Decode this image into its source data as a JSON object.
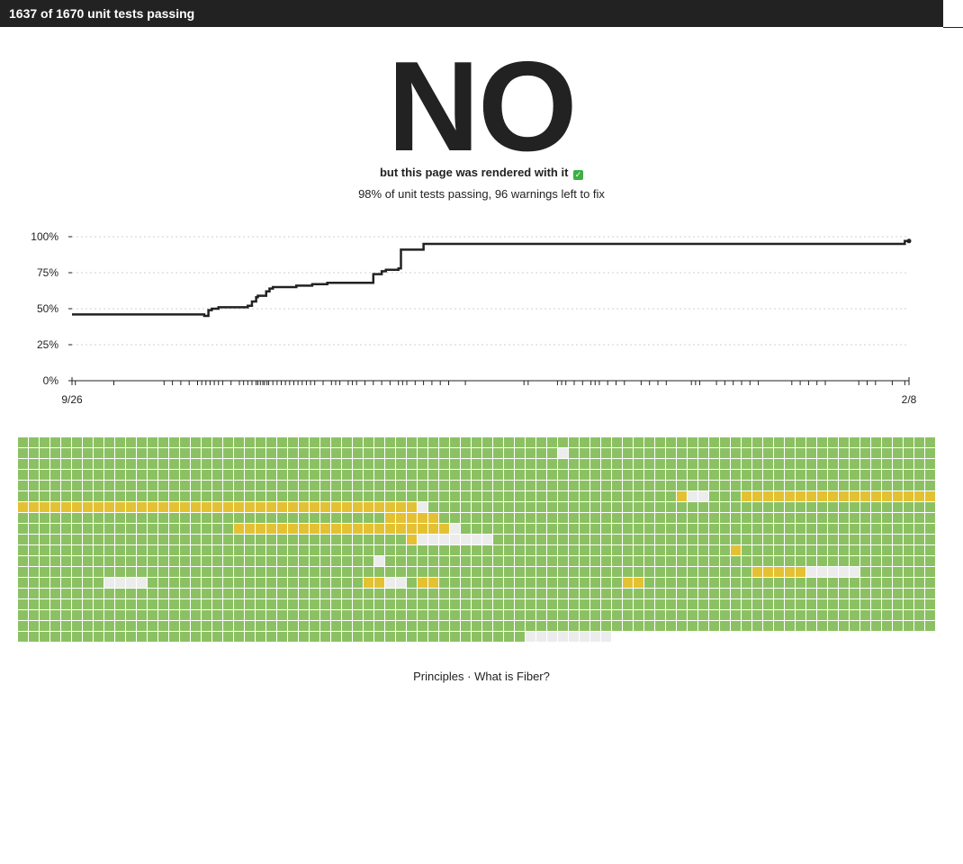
{
  "header": {
    "status_text": "1637 of 1670 unit tests passing"
  },
  "hero": {
    "answer": "NO",
    "subtitle": "but this page was rendered with it",
    "check_icon": "check-mark-icon",
    "progress_text": "98% of unit tests passing, 96 warnings left to fix"
  },
  "chart_data": {
    "type": "line",
    "x_start_label": "9/26",
    "x_end_label": "2/8",
    "y_ticks": [
      "0%",
      "25%",
      "50%",
      "75%",
      "100%"
    ],
    "ylim": [
      0,
      100
    ],
    "grid": true,
    "line_color": "#222222",
    "series": [
      {
        "x": [
          0,
          0.15,
          0.158,
          0.158,
          0.159,
          0.163,
          0.167,
          0.17,
          0.175,
          0.19,
          0.21,
          0.21,
          0.215,
          0.22,
          0.222,
          0.232,
          0.236,
          0.24,
          0.245,
          0.268,
          0.287,
          0.305,
          0.32,
          0.36,
          0.36,
          0.37,
          0.375,
          0.39,
          0.393,
          0.42,
          0.42,
          0.995,
          1
        ],
        "y": [
          46,
          46,
          45,
          45,
          45,
          49,
          50,
          50,
          51,
          51,
          51,
          52,
          55,
          58,
          59,
          62,
          64,
          65,
          65,
          66,
          67,
          68,
          68,
          69,
          74,
          76,
          77,
          78,
          91,
          91,
          95,
          97,
          97
        ]
      }
    ],
    "event_ticks": [
      0.004,
      0.05,
      0.11,
      0.12,
      0.13,
      0.14,
      0.15,
      0.155,
      0.16,
      0.165,
      0.17,
      0.175,
      0.18,
      0.19,
      0.2,
      0.205,
      0.21,
      0.215,
      0.22,
      0.222,
      0.225,
      0.228,
      0.23,
      0.233,
      0.235,
      0.24,
      0.245,
      0.25,
      0.255,
      0.26,
      0.265,
      0.27,
      0.275,
      0.28,
      0.285,
      0.29,
      0.3,
      0.31,
      0.315,
      0.32,
      0.33,
      0.335,
      0.34,
      0.35,
      0.36,
      0.37,
      0.38,
      0.39,
      0.395,
      0.4,
      0.41,
      0.42,
      0.43,
      0.44,
      0.45,
      0.47,
      0.54,
      0.545,
      0.58,
      0.585,
      0.59,
      0.6,
      0.61,
      0.62,
      0.625,
      0.63,
      0.64,
      0.65,
      0.66,
      0.68,
      0.69,
      0.7,
      0.71,
      0.74,
      0.745,
      0.75,
      0.77,
      0.78,
      0.79,
      0.8,
      0.81,
      0.82,
      0.86,
      0.87,
      0.88,
      0.89,
      0.9,
      0.94,
      0.95,
      0.96,
      0.98,
      0.995
    ]
  },
  "test_grid": {
    "columns": 85,
    "rows": 19,
    "green": "#8cc163",
    "yellow": "#e4c133",
    "white": "#ececec",
    "yellow_runs": [
      [
        5,
        61,
        63
      ],
      [
        5,
        67,
        67
      ],
      [
        5,
        68,
        84
      ],
      [
        6,
        0,
        36
      ],
      [
        6,
        37,
        37
      ],
      [
        7,
        34,
        38
      ],
      [
        8,
        20,
        39
      ],
      [
        9,
        36,
        37
      ],
      [
        10,
        66,
        66
      ],
      [
        12,
        68,
        72
      ],
      [
        13,
        32,
        33
      ],
      [
        13,
        37,
        38
      ],
      [
        13,
        56,
        57
      ]
    ],
    "white_runs": [
      [
        1,
        50,
        50
      ],
      [
        5,
        62,
        62
      ],
      [
        5,
        63,
        63
      ],
      [
        6,
        37,
        37
      ],
      [
        8,
        40,
        40
      ],
      [
        9,
        37,
        43
      ],
      [
        11,
        33,
        33
      ],
      [
        12,
        73,
        77
      ],
      [
        13,
        8,
        11
      ],
      [
        13,
        34,
        35
      ],
      [
        18,
        47,
        54
      ]
    ]
  },
  "footer": {
    "link_principles": "Principles",
    "separator": "·",
    "link_fiber": "What is Fiber?"
  }
}
